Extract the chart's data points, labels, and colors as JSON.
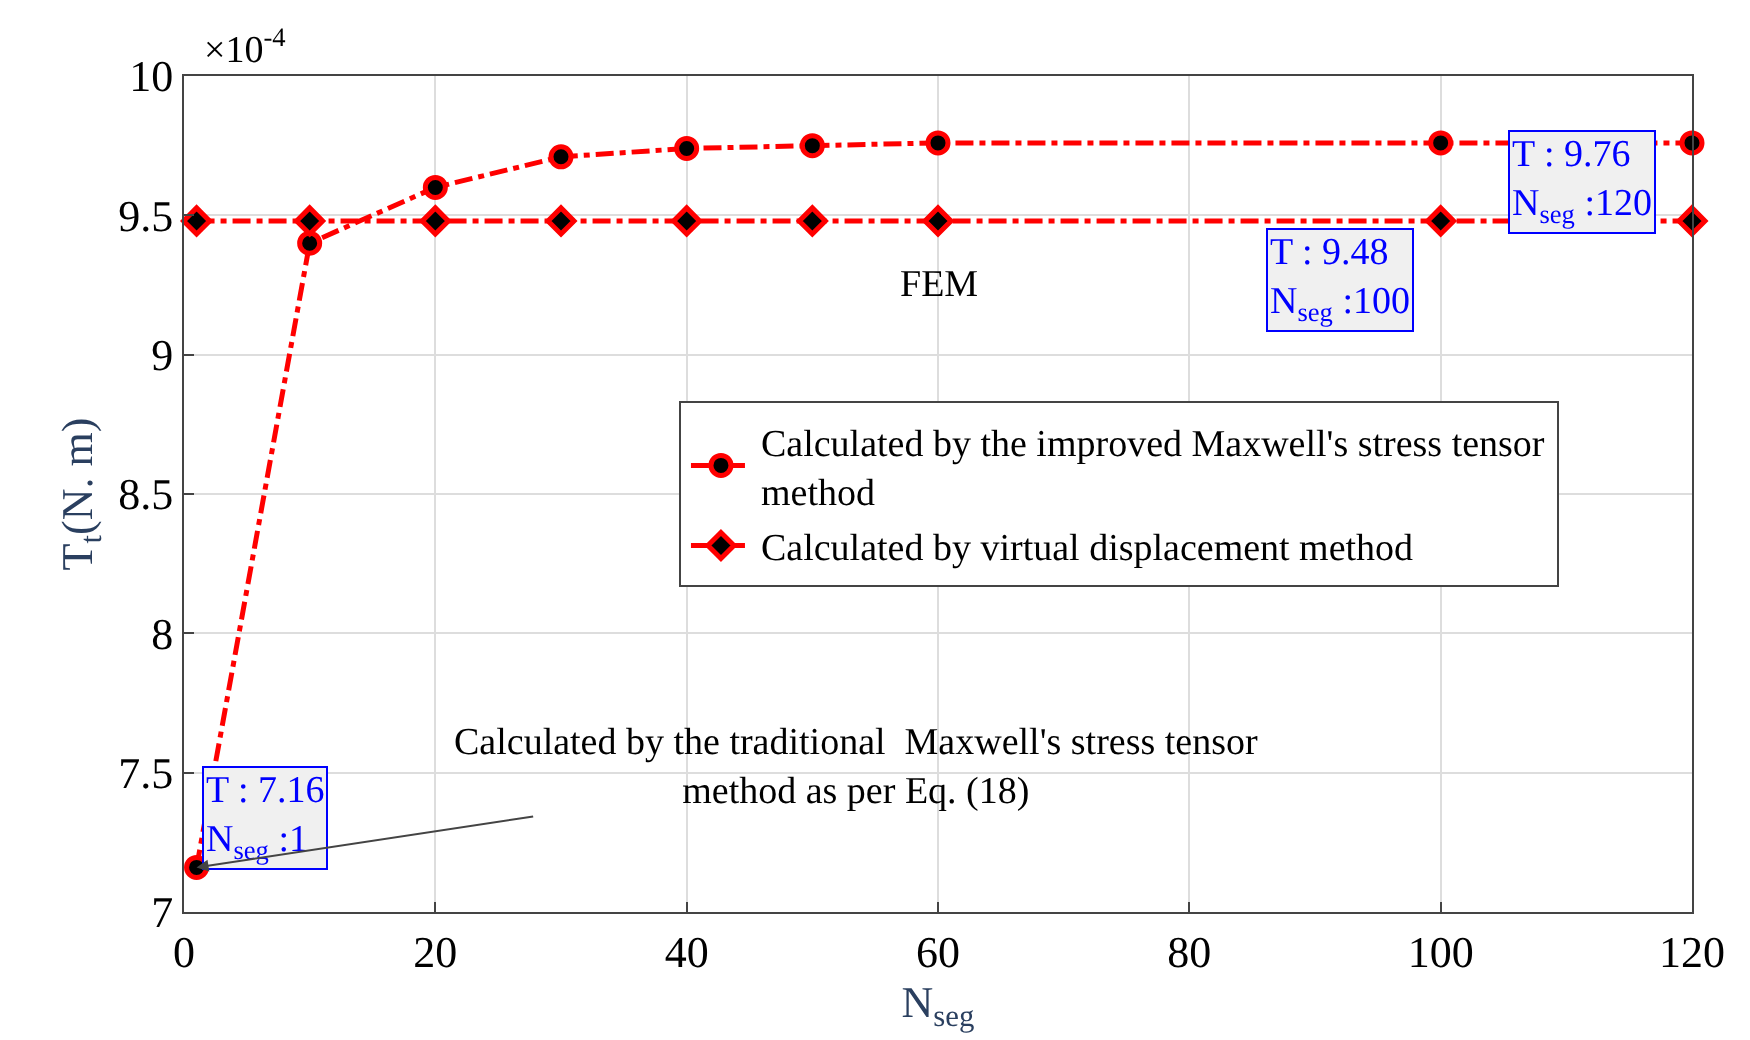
{
  "chart_data": {
    "type": "line",
    "xlabel": "N$_{seg}$",
    "ylabel": "T$_{t}$(N. m)",
    "xlim": [
      0,
      120
    ],
    "xticks": [
      0,
      20,
      40,
      60,
      80,
      100,
      120
    ],
    "ylim": [
      7,
      10
    ],
    "yticks": [
      7,
      {
        "value": 7.5,
        "label": "7.5"
      },
      8,
      {
        "value": 8.5,
        "label": "8.5"
      },
      9,
      {
        "value": 9.5,
        "label": "9.5"
      },
      10
    ],
    "grid": true,
    "legend": "center",
    "line_style": "dashed",
    "series": [
      {
        "name": "Calculated by the improved Maxwell's stress tensor method",
        "color": "#ff0000",
        "marker": "circle",
        "x": [
          1,
          10,
          20,
          30,
          40,
          50,
          60,
          100,
          120
        ],
        "values": [
          7.16,
          9.4,
          9.6,
          9.71,
          9.74,
          9.75,
          9.76,
          9.76,
          9.76
        ]
      },
      {
        "name": "Calculated by virtual displacement method",
        "color": "#ff0000",
        "marker": "diamond",
        "x": [
          1,
          10,
          20,
          30,
          40,
          50,
          60,
          100,
          120
        ],
        "values": [
          9.48,
          9.48,
          9.48,
          9.48,
          9.48,
          9.48,
          9.48,
          9.48,
          9.48
        ]
      }
    ],
    "annotations": [
      "×10$^{-4}$",
      {
        "text": "FEM",
        "x": 60,
        "y": 9.48
      },
      {
        "text": "T : 9.48\nN$_{seg}$ :100",
        "x": 100,
        "y": 9.48
      },
      {
        "text": "T : 9.76\nN$_{seg}$ :120",
        "x": 120,
        "y": 9.76
      },
      {
        "text": "T : 7.16\nN$_{seg}$ :1",
        "x": 1,
        "y": 7.16
      },
      {
        "text": "Calculated by the traditional  Maxwell's stress tensor\nmethod as per Eq. (18)",
        "x": 1,
        "y": 7.16
      }
    ]
  }
}
